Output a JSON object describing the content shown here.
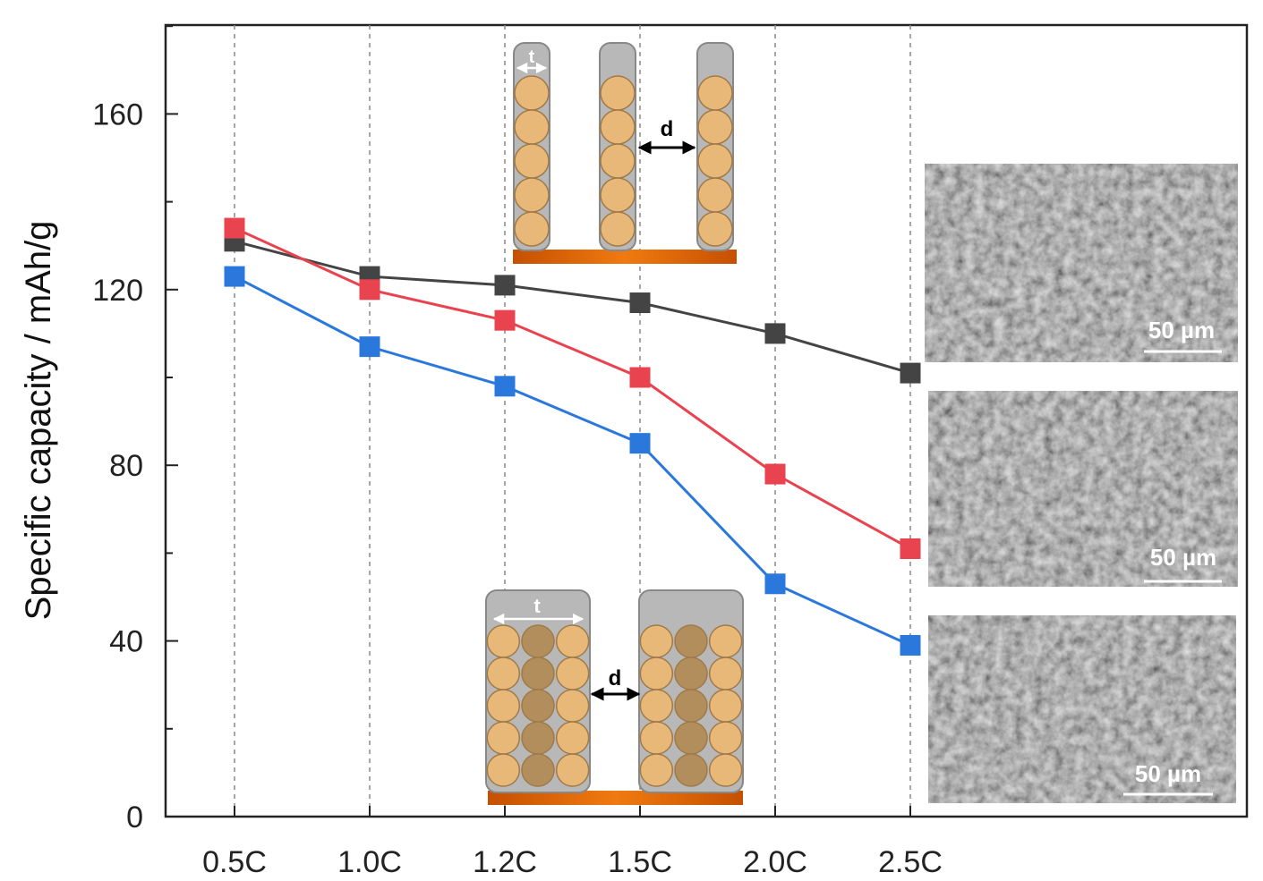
{
  "chart_data": {
    "type": "line",
    "title": "",
    "xlabel": "",
    "ylabel": "Specific capacity / mAh/g",
    "categories": [
      "0.5C",
      "1.0C",
      "1.2C",
      "1.5C",
      "2.0C",
      "2.5C"
    ],
    "ylim": [
      0,
      180
    ],
    "yticks": [
      0,
      40,
      80,
      120,
      160
    ],
    "grid": "vertical dashed lines at each category",
    "legend": "none",
    "series": [
      {
        "color": "#444444",
        "values": [
          131,
          123,
          121,
          117,
          110,
          101
        ]
      },
      {
        "color": "#e8434e",
        "values": [
          134,
          120,
          113,
          100,
          78,
          61
        ]
      },
      {
        "color": "#2b78dc",
        "values": [
          123,
          107,
          98,
          85,
          53,
          39
        ]
      }
    ],
    "insets": {
      "top_diagram": {
        "thickness_label": "t",
        "spacing_label": "d"
      },
      "bottom_diagram": {
        "thickness_label": "t",
        "spacing_label": "d"
      },
      "sem_images": [
        {
          "scale_label": "50 µm"
        },
        {
          "scale_label": "50 µm"
        },
        {
          "scale_label": "50 µm"
        }
      ]
    }
  }
}
